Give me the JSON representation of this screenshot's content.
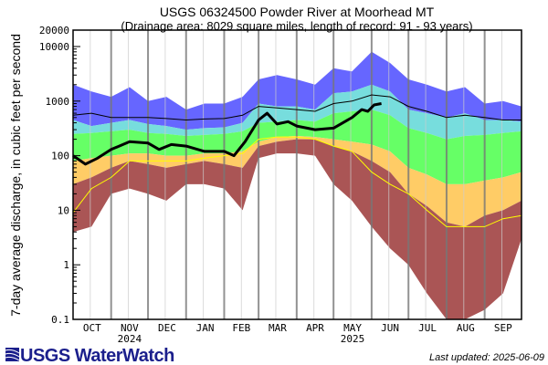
{
  "chart_data": {
    "type": "area",
    "title": "USGS 06324500 Powder River at Moorhead MT",
    "subtitle": "(Drainage area: 8029 square miles, length of record: 91 - 93 years)",
    "xlabel": "",
    "ylabel": "7-day average discharge, in cubic feet per second",
    "yscale": "log",
    "ylim": [
      0.1,
      20000
    ],
    "y_ticks": [
      "20000",
      "10000",
      "1000",
      "100",
      "10",
      "1",
      "0.1"
    ],
    "y_tick_values": [
      20000,
      10000,
      1000,
      100,
      10,
      1,
      0.1
    ],
    "x_unit": "day of water year (0 = Oct 1, 2024)",
    "xlim": [
      0,
      365
    ],
    "months": [
      "OCT",
      "NOV",
      "DEC",
      "JAN",
      "FEB",
      "MAR",
      "APR",
      "MAY",
      "JUN",
      "JUL",
      "AUG",
      "SEP"
    ],
    "month_start_days": [
      0,
      31,
      61,
      92,
      123,
      151,
      182,
      212,
      243,
      273,
      304,
      335
    ],
    "year_labels": [
      {
        "text": "2024",
        "month": "NOV"
      },
      {
        "text": "2025",
        "month": "MAY"
      }
    ],
    "x": [
      0,
      15,
      31,
      46,
      61,
      76,
      92,
      107,
      123,
      138,
      151,
      166,
      182,
      197,
      212,
      227,
      243,
      258,
      273,
      288,
      304,
      319,
      335,
      350,
      365
    ],
    "bands": [
      {
        "name": "max",
        "color": "#6666ff",
        "values": [
          2000,
          1500,
          1200,
          1800,
          1000,
          1200,
          700,
          900,
          900,
          1200,
          2500,
          3000,
          2500,
          2000,
          4000,
          3500,
          8000,
          5000,
          2500,
          2000,
          1500,
          1800,
          900,
          1000,
          800
        ]
      },
      {
        "name": "p90",
        "color": "#77dddd",
        "values": [
          450,
          350,
          400,
          450,
          380,
          350,
          300,
          320,
          330,
          400,
          900,
          800,
          800,
          700,
          1400,
          1500,
          2000,
          1500,
          700,
          600,
          500,
          600,
          450,
          450,
          420
        ]
      },
      {
        "name": "p75",
        "color": "#66ff66",
        "values": [
          250,
          260,
          280,
          300,
          260,
          250,
          230,
          240,
          250,
          280,
          400,
          420,
          450,
          420,
          600,
          650,
          700,
          550,
          320,
          260,
          200,
          230,
          240,
          260,
          280
        ]
      },
      {
        "name": "p25",
        "color": "#ffcc66",
        "values": [
          80,
          90,
          100,
          110,
          110,
          100,
          100,
          110,
          110,
          120,
          180,
          220,
          230,
          220,
          200,
          180,
          160,
          120,
          60,
          45,
          30,
          30,
          35,
          40,
          50
        ]
      },
      {
        "name": "p10",
        "color": "#aa5555",
        "values": [
          30,
          40,
          60,
          80,
          70,
          60,
          70,
          80,
          70,
          60,
          150,
          180,
          200,
          200,
          150,
          120,
          80,
          50,
          20,
          12,
          6,
          5,
          8,
          10,
          15
        ]
      },
      {
        "name": "min",
        "color": "#ffffff",
        "values": [
          4,
          5,
          20,
          25,
          20,
          15,
          30,
          30,
          25,
          10,
          90,
          110,
          110,
          100,
          30,
          15,
          5,
          2,
          1,
          0.3,
          0.1,
          0.1,
          0.15,
          0.3,
          3
        ]
      }
    ],
    "series": [
      {
        "name": "median",
        "color": "#000000",
        "values": [
          550,
          600,
          500,
          500,
          500,
          480,
          450,
          470,
          480,
          550,
          800,
          750,
          700,
          650,
          900,
          1000,
          1300,
          1200,
          800,
          650,
          500,
          550,
          500,
          450,
          450
        ]
      },
      {
        "name": "yellow-line",
        "color": "#ffff00",
        "values": [
          9,
          25,
          40,
          80,
          80,
          80,
          80,
          90,
          100,
          110,
          200,
          220,
          220,
          200,
          150,
          120,
          50,
          30,
          20,
          10,
          5,
          5,
          5,
          7,
          8
        ]
      }
    ],
    "current": {
      "name": "current 7-day discharge",
      "color": "#000000",
      "x": [
        0,
        10,
        20,
        31,
        46,
        61,
        70,
        80,
        92,
        107,
        123,
        131,
        140,
        151,
        158,
        166,
        175,
        182,
        197,
        212,
        227,
        235,
        240,
        245,
        251
      ],
      "values": [
        100,
        70,
        90,
        130,
        180,
        170,
        130,
        160,
        150,
        120,
        120,
        100,
        180,
        450,
        600,
        380,
        420,
        350,
        300,
        320,
        500,
        700,
        650,
        850,
        900
      ]
    }
  },
  "footer": {
    "logo": "USGS WaterWatch",
    "last_updated": "Last updated: 2025-06-09"
  }
}
